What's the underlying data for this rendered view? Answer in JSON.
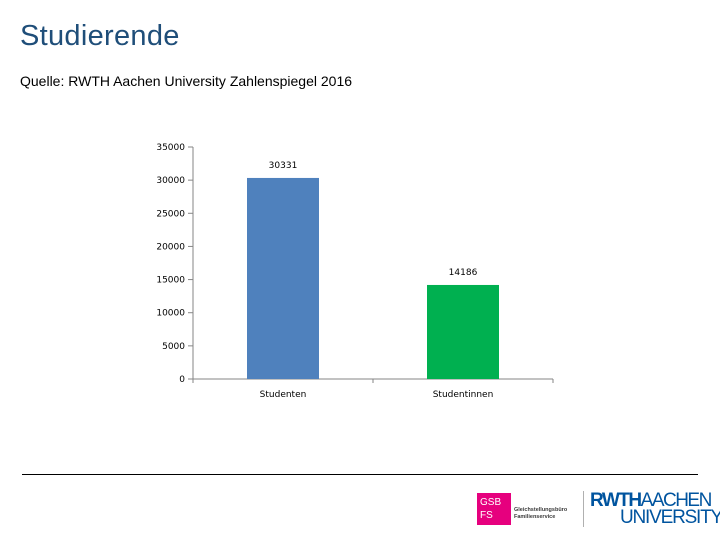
{
  "slide": {
    "title": "Studierende",
    "source": "Quelle: RWTH Aachen University Zahlenspiegel 2016"
  },
  "colors": {
    "title": "#1f4e79",
    "bar_studenten": "#4f81bd",
    "bar_studentinnen": "#00b050",
    "gsb_pink": "#e6007e",
    "rwth_blue": "#00549f"
  },
  "chart_data": {
    "type": "bar",
    "title": "",
    "xlabel": "",
    "ylabel": "",
    "ylim": [
      0,
      35000
    ],
    "yticks": [
      0,
      5000,
      10000,
      15000,
      20000,
      25000,
      30000,
      35000
    ],
    "ytick_labels": [
      "0",
      "5000",
      "10000",
      "15000",
      "20000",
      "25000",
      "30000",
      "35000"
    ],
    "categories": [
      "Studenten",
      "Studentinnen"
    ],
    "values": [
      30331,
      14186
    ],
    "data_labels": [
      "30331",
      "14186"
    ],
    "bar_colors": [
      "#4f81bd",
      "#00b050"
    ],
    "grid": false,
    "legend": "none"
  },
  "logos": {
    "gsb": {
      "line1": "GSB",
      "line2": "FS",
      "text1": "Gleichstellungsbüro",
      "text2": "Familienservice"
    },
    "rwth": {
      "line1a": "RWTH",
      "line1b": "AACHEN",
      "line2": "UNIVERSITY"
    }
  }
}
